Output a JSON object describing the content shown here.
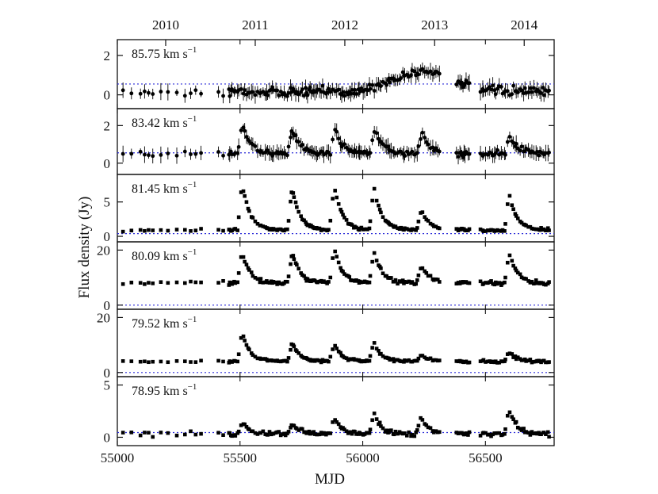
{
  "chart_data": {
    "type": "scatter",
    "xlabel": "MJD",
    "ylabel": "Flux density (Jy)",
    "x_range": [
      55000,
      56780
    ],
    "x_ticks": [
      {
        "value": 55000,
        "label": "55000"
      },
      {
        "value": 55500,
        "label": "55500"
      },
      {
        "value": 56000,
        "label": "56000"
      },
      {
        "value": 56500,
        "label": "56500"
      }
    ],
    "top_axis_years": [
      {
        "value": 55197,
        "label": "2010"
      },
      {
        "value": 55562,
        "label": "2011"
      },
      {
        "value": 55927,
        "label": "2012"
      },
      {
        "value": 56293,
        "label": "2013"
      },
      {
        "value": 56658,
        "label": "2014"
      }
    ],
    "panels": [
      {
        "label": "85.75 km s",
        "ylim": [
          -0.7,
          2.8
        ],
        "yticks": [
          {
            "value": 0,
            "label": "0"
          },
          {
            "value": 2,
            "label": "2"
          }
        ],
        "baseline": 0.55,
        "base": 0.15,
        "noise": 0.22,
        "errorbars": true,
        "flares": [],
        "bumps": [
          {
            "center": 56250,
            "amp": 1.05,
            "width": 170
          }
        ]
      },
      {
        "label": "83.42 km s",
        "ylim": [
          -0.6,
          2.9
        ],
        "yticks": [
          {
            "value": 0,
            "label": "0"
          },
          {
            "value": 2,
            "label": "2"
          }
        ],
        "baseline": 0.55,
        "base": 0.5,
        "noise": 0.15,
        "errorbars": true,
        "flares": [
          {
            "t0": 55508,
            "amp": 1.7
          },
          {
            "t0": 55712,
            "amp": 1.3
          },
          {
            "t0": 55885,
            "amp": 1.4
          },
          {
            "t0": 56048,
            "amp": 1.3
          },
          {
            "t0": 56240,
            "amp": 1.2
          },
          {
            "t0": 56598,
            "amp": 1.0
          }
        ],
        "bumps": []
      },
      {
        "label": "81.45 km s",
        "ylim": [
          -0.8,
          9.0
        ],
        "yticks": [
          {
            "value": 0,
            "label": "0"
          },
          {
            "value": 5,
            "label": "5"
          }
        ],
        "baseline": 0.4,
        "base": 0.9,
        "noise": 0.2,
        "errorbars": false,
        "flares": [
          {
            "t0": 55508,
            "amp": 7.0
          },
          {
            "t0": 55712,
            "amp": 6.2
          },
          {
            "t0": 55883,
            "amp": 6.6
          },
          {
            "t0": 56045,
            "amp": 6.4
          },
          {
            "t0": 56238,
            "amp": 3.0
          },
          {
            "t0": 56596,
            "amp": 5.4
          }
        ],
        "bumps": []
      },
      {
        "label": "80.09 km s",
        "ylim": [
          -1.5,
          23.0
        ],
        "yticks": [
          {
            "value": 0,
            "label": "0"
          },
          {
            "value": 20,
            "label": "20"
          }
        ],
        "baseline": 0.0,
        "base": 8.0,
        "noise": 0.7,
        "errorbars": false,
        "flares": [
          {
            "t0": 55508,
            "amp": 11.5
          },
          {
            "t0": 55712,
            "amp": 11.0
          },
          {
            "t0": 55883,
            "amp": 13.0
          },
          {
            "t0": 56045,
            "amp": 12.0
          },
          {
            "t0": 56238,
            "amp": 6.5
          },
          {
            "t0": 56596,
            "amp": 11.0
          }
        ],
        "bumps": []
      },
      {
        "label": "79.52 km s",
        "ylim": [
          -1.5,
          23.0
        ],
        "yticks": [
          {
            "value": 0,
            "label": "0"
          },
          {
            "value": 20,
            "label": "20"
          }
        ],
        "baseline": 0.0,
        "base": 4.0,
        "noise": 0.5,
        "errorbars": false,
        "flares": [
          {
            "t0": 55508,
            "amp": 11.0
          },
          {
            "t0": 55712,
            "amp": 7.0
          },
          {
            "t0": 55883,
            "amp": 6.5
          },
          {
            "t0": 56045,
            "amp": 7.0
          },
          {
            "t0": 56238,
            "amp": 2.5
          },
          {
            "t0": 56596,
            "amp": 3.5
          }
        ],
        "bumps": []
      },
      {
        "label": "78.95 km s",
        "ylim": [
          -0.8,
          5.8
        ],
        "yticks": [
          {
            "value": 0,
            "label": "0"
          },
          {
            "value": 5,
            "label": "5"
          }
        ],
        "baseline": 0.45,
        "base": 0.3,
        "noise": 0.22,
        "errorbars": false,
        "flares": [
          {
            "t0": 55508,
            "amp": 1.2
          },
          {
            "t0": 55712,
            "amp": 1.0
          },
          {
            "t0": 55883,
            "amp": 1.6
          },
          {
            "t0": 56045,
            "amp": 2.0
          },
          {
            "t0": 56238,
            "amp": 1.7
          },
          {
            "t0": 56596,
            "amp": 2.4
          }
        ],
        "bumps": []
      }
    ],
    "observation_gaps": [
      [
        55360,
        55400
      ],
      [
        56320,
        56380
      ],
      [
        56440,
        56470
      ]
    ],
    "grid": false,
    "legend": "none",
    "colors": {
      "points": "#000000",
      "baseline": "#2a2ad8",
      "axes": "#111111"
    }
  }
}
